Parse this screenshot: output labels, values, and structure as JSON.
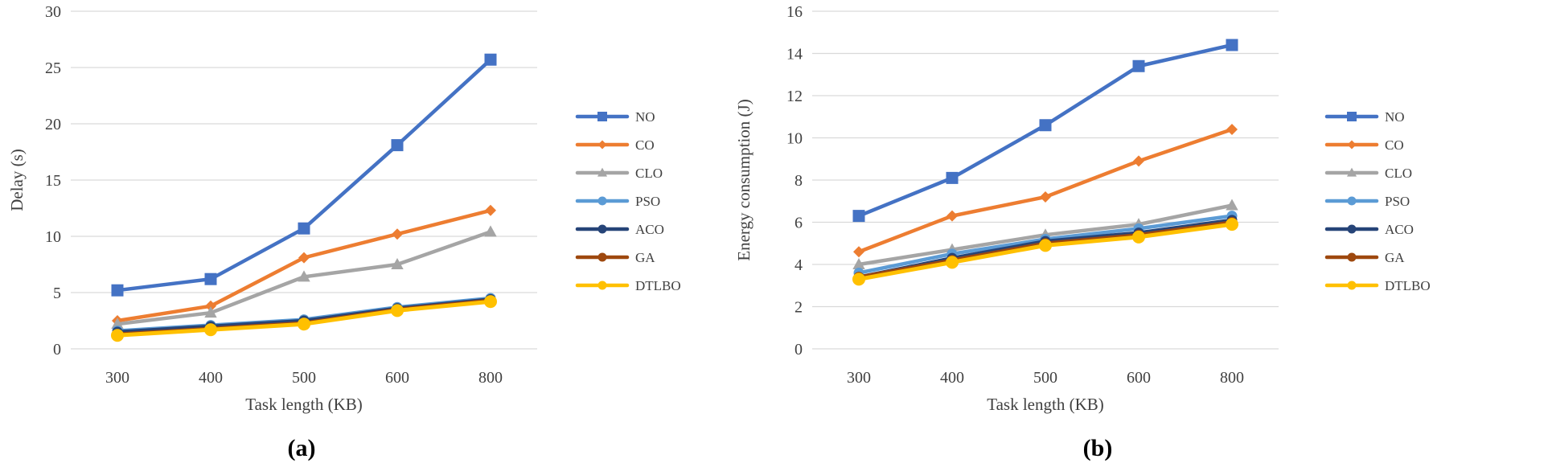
{
  "chart_data": [
    {
      "type": "line",
      "panel_label": "(a)",
      "xlabel": "Task length (KB)",
      "ylabel": "Delay (s)",
      "categories": [
        "300",
        "400",
        "500",
        "600",
        "800"
      ],
      "ylim": [
        0,
        30
      ],
      "yticks": [
        0,
        5,
        10,
        15,
        20,
        25,
        30
      ],
      "grid": true,
      "legend_position": "right",
      "series": [
        {
          "name": "NO",
          "color": "#4472c4",
          "marker": "square",
          "values": [
            5.2,
            6.2,
            10.7,
            18.1,
            25.7
          ]
        },
        {
          "name": "CO",
          "color": "#ed7d31",
          "marker": "diamond",
          "values": [
            2.5,
            3.8,
            8.1,
            10.2,
            12.3
          ]
        },
        {
          "name": "CLO",
          "color": "#a5a5a5",
          "marker": "triangle",
          "values": [
            2.2,
            3.2,
            6.4,
            7.5,
            10.4
          ]
        },
        {
          "name": "PSO",
          "color": "#5b9bd5",
          "marker": "circle",
          "values": [
            1.6,
            2.1,
            2.6,
            3.7,
            4.5
          ]
        },
        {
          "name": "ACO",
          "color": "#264478",
          "marker": "circle",
          "values": [
            1.5,
            2.0,
            2.5,
            3.6,
            4.4
          ]
        },
        {
          "name": "GA",
          "color": "#9e480e",
          "marker": "circle",
          "values": [
            1.3,
            1.8,
            2.3,
            3.5,
            4.3
          ]
        },
        {
          "name": "DTLBO",
          "color": "#ffc000",
          "marker": "circle",
          "values": [
            1.2,
            1.7,
            2.2,
            3.4,
            4.2
          ]
        }
      ]
    },
    {
      "type": "line",
      "panel_label": "(b)",
      "xlabel": "Task length (KB)",
      "ylabel": "Energy consumption (J)",
      "categories": [
        "300",
        "400",
        "500",
        "600",
        "800"
      ],
      "ylim": [
        0,
        16
      ],
      "yticks": [
        0,
        2,
        4,
        6,
        8,
        10,
        12,
        14,
        16
      ],
      "grid": true,
      "legend_position": "right",
      "series": [
        {
          "name": "NO",
          "color": "#4472c4",
          "marker": "square",
          "values": [
            6.3,
            8.1,
            10.6,
            13.4,
            14.4
          ]
        },
        {
          "name": "CO",
          "color": "#ed7d31",
          "marker": "diamond",
          "values": [
            4.6,
            6.3,
            7.2,
            8.9,
            10.4
          ]
        },
        {
          "name": "CLO",
          "color": "#a5a5a5",
          "marker": "triangle",
          "values": [
            4.0,
            4.7,
            5.4,
            5.9,
            6.8
          ]
        },
        {
          "name": "PSO",
          "color": "#5b9bd5",
          "marker": "circle",
          "values": [
            3.6,
            4.5,
            5.2,
            5.7,
            6.3
          ]
        },
        {
          "name": "ACO",
          "color": "#264478",
          "marker": "circle",
          "values": [
            3.4,
            4.3,
            5.1,
            5.5,
            6.1
          ]
        },
        {
          "name": "GA",
          "color": "#9e480e",
          "marker": "circle",
          "values": [
            3.4,
            4.2,
            5.0,
            5.4,
            6.0
          ]
        },
        {
          "name": "DTLBO",
          "color": "#ffc000",
          "marker": "circle",
          "values": [
            3.3,
            4.1,
            4.9,
            5.3,
            5.9
          ]
        }
      ]
    }
  ]
}
